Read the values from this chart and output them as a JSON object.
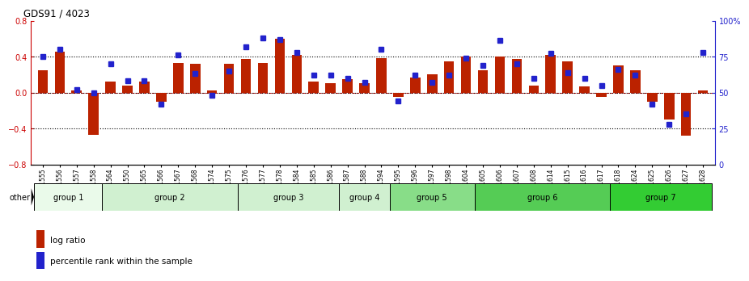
{
  "title": "GDS91 / 4023",
  "samples": [
    "GSM1555",
    "GSM1556",
    "GSM1557",
    "GSM1558",
    "GSM1564",
    "GSM1550",
    "GSM1565",
    "GSM1566",
    "GSM1567",
    "GSM1568",
    "GSM1574",
    "GSM1575",
    "GSM1576",
    "GSM1577",
    "GSM1578",
    "GSM1584",
    "GSM1585",
    "GSM1586",
    "GSM1587",
    "GSM1588",
    "GSM1594",
    "GSM1595",
    "GSM1596",
    "GSM1597",
    "GSM1598",
    "GSM1604",
    "GSM1605",
    "GSM1606",
    "GSM1607",
    "GSM1608",
    "GSM1614",
    "GSM1615",
    "GSM1616",
    "GSM1617",
    "GSM1618",
    "GSM1624",
    "GSM1625",
    "GSM1626",
    "GSM1627",
    "GSM1628"
  ],
  "log_ratio": [
    0.25,
    0.45,
    0.02,
    -0.47,
    0.12,
    0.08,
    0.12,
    -0.1,
    0.33,
    0.32,
    0.02,
    0.32,
    0.37,
    0.33,
    0.6,
    0.42,
    0.12,
    0.1,
    0.15,
    0.1,
    0.38,
    -0.05,
    0.17,
    0.2,
    0.35,
    0.4,
    0.25,
    0.4,
    0.37,
    0.08,
    0.42,
    0.35,
    0.07,
    -0.05,
    0.3,
    0.25,
    -0.1,
    -0.3,
    -0.48,
    0.02
  ],
  "percentile": [
    75,
    80,
    52,
    50,
    70,
    58,
    58,
    42,
    76,
    63,
    48,
    65,
    82,
    88,
    87,
    78,
    62,
    62,
    60,
    57,
    80,
    44,
    62,
    57,
    62,
    74,
    69,
    86,
    70,
    60,
    77,
    64,
    60,
    55,
    66,
    62,
    42,
    28,
    35,
    78
  ],
  "groups": [
    {
      "name": "group 1",
      "start": 0,
      "end": 4,
      "color": "#eafaea"
    },
    {
      "name": "group 2",
      "start": 4,
      "end": 12,
      "color": "#d0f0d0"
    },
    {
      "name": "group 3",
      "start": 12,
      "end": 18,
      "color": "#d0f0d0"
    },
    {
      "name": "group 4",
      "start": 18,
      "end": 21,
      "color": "#d0f0d0"
    },
    {
      "name": "group 5",
      "start": 21,
      "end": 26,
      "color": "#88dd88"
    },
    {
      "name": "group 6",
      "start": 26,
      "end": 34,
      "color": "#55cc55"
    },
    {
      "name": "group 7",
      "start": 34,
      "end": 40,
      "color": "#33cc33"
    }
  ],
  "bar_color": "#bb2200",
  "dot_color": "#2222cc",
  "ylim_left": [
    -0.8,
    0.8
  ],
  "ylim_right": [
    0,
    100
  ],
  "yticks_left": [
    -0.8,
    -0.4,
    0.0,
    0.4,
    0.8
  ],
  "yticks_right": [
    0,
    25,
    50,
    75,
    100
  ],
  "ytick_labels_right": [
    "0",
    "25",
    "50",
    "75",
    "100%"
  ],
  "hlines_dotted": [
    0.4,
    -0.4
  ],
  "bg_color": "#ffffff"
}
